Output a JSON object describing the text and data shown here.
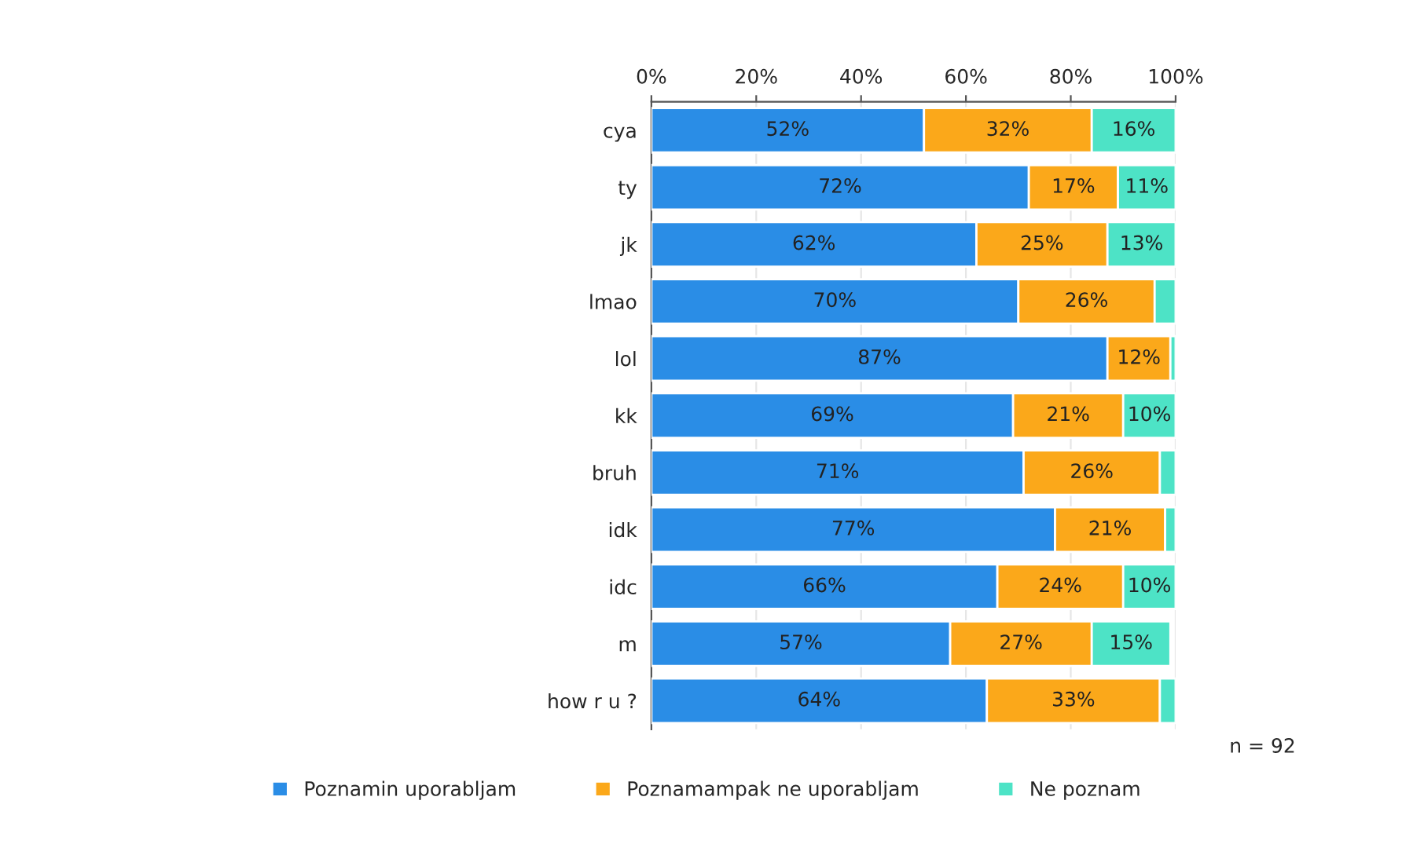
{
  "chart_data": {
    "type": "bar",
    "orientation": "horizontal",
    "stacked": true,
    "categories": [
      "cya",
      "ty",
      "jk",
      "lmao",
      "lol",
      "kk",
      "bruh",
      "idk",
      "idc",
      "m",
      "how r u ?"
    ],
    "series": [
      {
        "name": "Poznamin uporabljam",
        "color": "#2a8de6",
        "values": [
          52,
          72,
          62,
          70,
          87,
          69,
          71,
          77,
          66,
          57,
          64
        ],
        "value_labels": [
          "52%",
          "72%",
          "62%",
          "70%",
          "87%",
          "69%",
          "71%",
          "77%",
          "66%",
          "57%",
          "64%"
        ]
      },
      {
        "name": "Poznamampak ne uporabljam",
        "color": "#fba81a",
        "values": [
          32,
          17,
          25,
          26,
          12,
          21,
          26,
          21,
          24,
          27,
          33
        ],
        "value_labels": [
          "32%",
          "17%",
          "25%",
          "26%",
          "12%",
          "21%",
          "26%",
          "21%",
          "24%",
          "27%",
          "33%"
        ]
      },
      {
        "name": "Ne poznam",
        "color": "#4de3c6",
        "values": [
          16,
          11,
          13,
          4,
          1,
          10,
          3,
          2,
          10,
          15,
          3
        ],
        "value_labels": [
          "16%",
          "11%",
          "13%",
          null,
          null,
          "10%",
          null,
          null,
          "10%",
          "15%",
          null
        ]
      }
    ],
    "xlim": [
      0,
      100
    ],
    "xticks": [
      {
        "value": 0,
        "label": "0%"
      },
      {
        "value": 20,
        "label": "20%"
      },
      {
        "value": 40,
        "label": "40%"
      },
      {
        "value": 60,
        "label": "60%"
      },
      {
        "value": 80,
        "label": "80%"
      },
      {
        "value": 100,
        "label": "100%"
      }
    ],
    "grid": "x",
    "legend": "bottom",
    "annotations": [
      "n = 92"
    ]
  }
}
